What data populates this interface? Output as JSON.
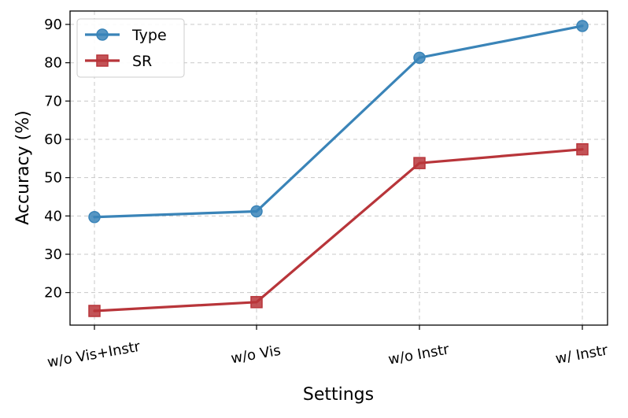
{
  "chart_data": {
    "type": "line",
    "title": "",
    "xlabel": "Settings",
    "ylabel": "Accuracy (%)",
    "categories": [
      "w/o Vis+Instr",
      "w/o Vis",
      "w/o Instr",
      "w/ Instr"
    ],
    "ylim": [
      11.5,
      93.5
    ],
    "yticks": [
      20,
      30,
      40,
      50,
      60,
      70,
      80,
      90
    ],
    "grid": true,
    "legend_position": "top-left",
    "series": [
      {
        "name": "Type",
        "values": [
          39.7,
          41.2,
          81.3,
          89.6
        ],
        "color": "#3a84b8",
        "marker": "circle"
      },
      {
        "name": "SR",
        "values": [
          15.2,
          17.5,
          53.8,
          57.4
        ],
        "color": "#b8353a",
        "marker": "square"
      }
    ]
  }
}
